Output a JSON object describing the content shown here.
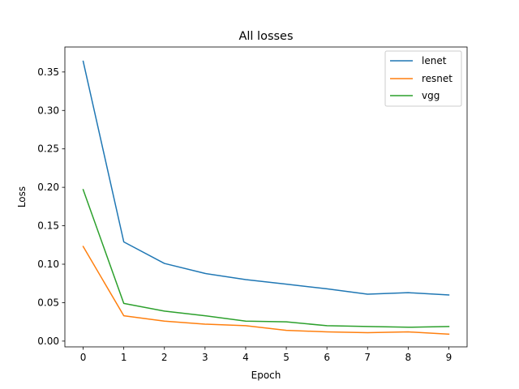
{
  "chart_data": {
    "type": "line",
    "title": "All losses",
    "xlabel": "Epoch",
    "ylabel": "Loss",
    "x": [
      0,
      1,
      2,
      3,
      4,
      5,
      6,
      7,
      8,
      9
    ],
    "xlim": [
      -0.45,
      9.45
    ],
    "ylim": [
      -0.0075,
      0.3825
    ],
    "xticks": [
      0,
      1,
      2,
      3,
      4,
      5,
      6,
      7,
      8,
      9
    ],
    "xtick_labels": [
      "0",
      "1",
      "2",
      "3",
      "4",
      "5",
      "6",
      "7",
      "8",
      "9"
    ],
    "yticks": [
      0.0,
      0.05,
      0.1,
      0.15,
      0.2,
      0.25,
      0.3,
      0.35
    ],
    "ytick_labels": [
      "0.00",
      "0.05",
      "0.10",
      "0.15",
      "0.20",
      "0.25",
      "0.30",
      "0.35"
    ],
    "grid": false,
    "legend_position": "top-right",
    "series": [
      {
        "name": "lenet",
        "color": "#1f77b4",
        "values": [
          0.364,
          0.129,
          0.101,
          0.088,
          0.08,
          0.074,
          0.068,
          0.061,
          0.063,
          0.06
        ]
      },
      {
        "name": "resnet",
        "color": "#ff7f0e",
        "values": [
          0.123,
          0.033,
          0.026,
          0.022,
          0.02,
          0.014,
          0.012,
          0.011,
          0.012,
          0.009
        ]
      },
      {
        "name": "vgg",
        "color": "#2ca02c",
        "values": [
          0.197,
          0.049,
          0.039,
          0.033,
          0.026,
          0.025,
          0.02,
          0.019,
          0.018,
          0.019
        ]
      }
    ]
  }
}
